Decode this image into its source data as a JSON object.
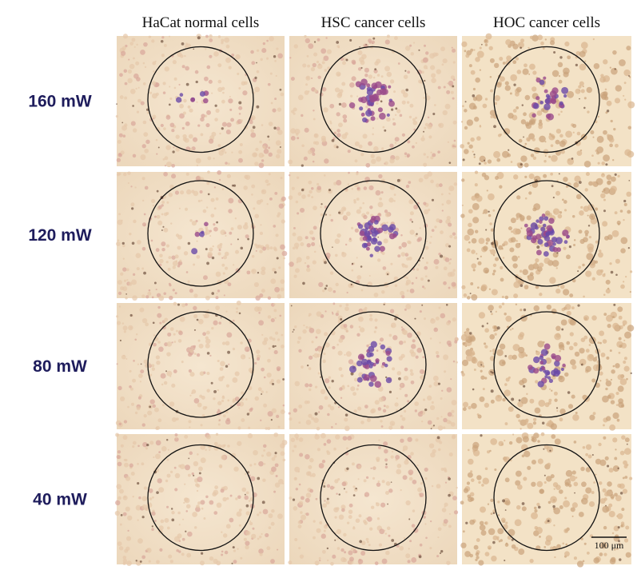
{
  "columns": [
    "HaCat normal cells",
    "HSC cancer cells",
    "HOC cancer cells"
  ],
  "rows": [
    "160 mW",
    "120 mW",
    "80 mW",
    "40 mW"
  ],
  "scale_bar": "100 μm"
}
